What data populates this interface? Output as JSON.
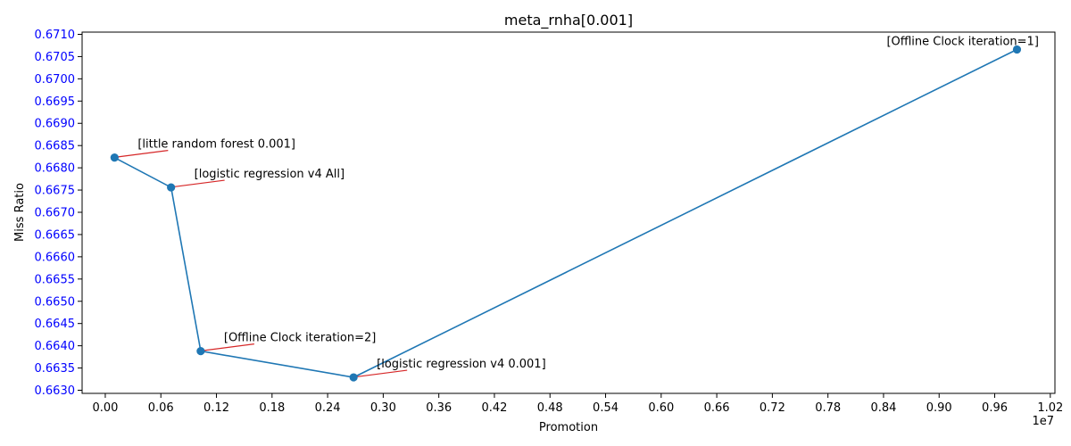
{
  "chart_data": {
    "type": "line",
    "title": "meta_rnha[0.001]",
    "xlabel": "Promotion",
    "ylabel": "Miss Ratio",
    "x_offset_label": "1e7",
    "xlim": [
      -0.025,
      1.025
    ],
    "ylim": [
      0.66293,
      0.67105
    ],
    "xticks": [
      "0.00",
      "0.06",
      "0.12",
      "0.18",
      "0.24",
      "0.30",
      "0.36",
      "0.42",
      "0.48",
      "0.54",
      "0.60",
      "0.66",
      "0.72",
      "0.78",
      "0.84",
      "0.90",
      "0.96",
      "1.02"
    ],
    "yticks": [
      "0.6630",
      "0.6635",
      "0.6640",
      "0.6645",
      "0.6650",
      "0.6655",
      "0.6660",
      "0.6665",
      "0.6670",
      "0.6675",
      "0.6680",
      "0.6685",
      "0.6690",
      "0.6695",
      "0.6700",
      "0.6705",
      "0.6710"
    ],
    "grid": false,
    "colors": {
      "line": "#1f77b4",
      "marker": "#1f77b4",
      "annotation_arrow": "#d62728",
      "ytick_labels": "#0000ff",
      "text": "#000000"
    },
    "points": [
      {
        "x": 0.01,
        "y": 0.66823,
        "label": "[little random forest 0.001]"
      },
      {
        "x": 0.071,
        "y": 0.66756,
        "label": "[logistic regression v4 All]"
      },
      {
        "x": 0.103,
        "y": 0.66388,
        "label": "[Offline Clock iteration=2]"
      },
      {
        "x": 0.268,
        "y": 0.66329,
        "label": "[logistic regression v4 0.001]"
      },
      {
        "x": 0.984,
        "y": 0.67066,
        "label": "[Offline Clock iteration=1]"
      }
    ]
  }
}
